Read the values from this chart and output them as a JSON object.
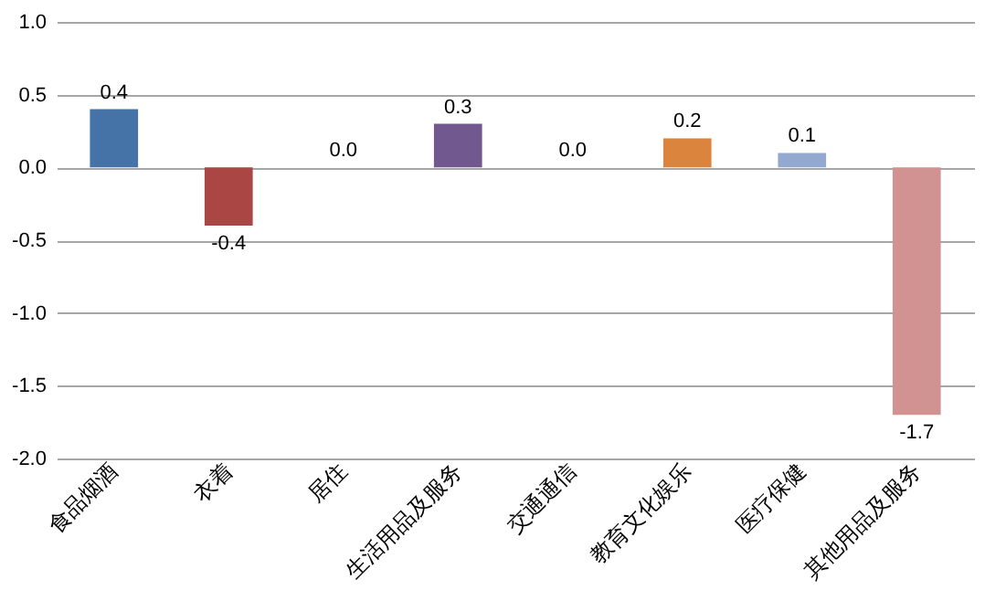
{
  "chart_data": {
    "type": "bar",
    "categories": [
      "食品烟酒",
      "衣着",
      "居住",
      "生活用品及服务",
      "交通通信",
      "教育文化娱乐",
      "医疗保健",
      "其他用品及服务"
    ],
    "values": [
      0.4,
      -0.4,
      0.0,
      0.3,
      0.0,
      0.2,
      0.1,
      -1.7
    ],
    "colors": [
      "#4572a7",
      "#aa4643",
      "#89a54e",
      "#71588f",
      "#4198af",
      "#db843d",
      "#93a9cf",
      "#d19392"
    ],
    "value_labels": [
      "0.4",
      "-0.4",
      "0.0",
      "0.3",
      "0.0",
      "0.2",
      "0.1",
      "-1.7"
    ],
    "ylim": [
      -2,
      1
    ],
    "yticks": [
      {
        "value": 1,
        "label": "1.0"
      },
      0.5,
      {
        "value": 0,
        "label": "0.0"
      },
      -0.5,
      {
        "value": -1,
        "label": "-1.0"
      },
      -1.5,
      {
        "value": -2,
        "label": "-2.0"
      }
    ],
    "grid": "y"
  }
}
